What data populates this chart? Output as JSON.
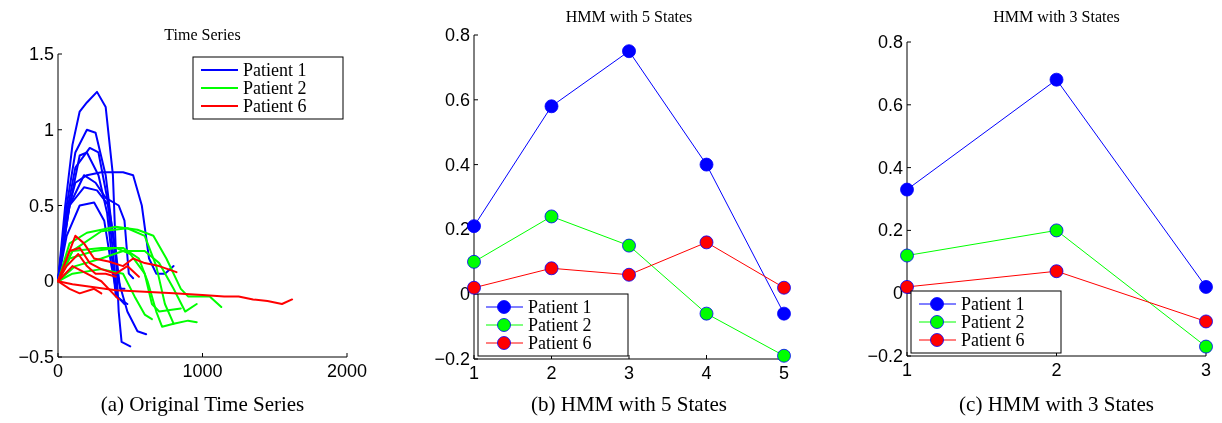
{
  "chart_data": [
    {
      "type": "line",
      "title": "Time Series",
      "annotations": [
        "(a)  Original Time Series"
      ],
      "xlim": [
        0,
        2000
      ],
      "xticks": [
        0,
        1000,
        2000
      ],
      "ylim": [
        -0.5,
        1.5
      ],
      "yticks": [
        -0.5,
        0,
        0.5,
        1,
        1.5
      ],
      "legend": "top right",
      "series": [
        {
          "name": "Patient 1",
          "color": "#0000ff",
          "x": [
            0,
            50,
            100,
            150,
            200,
            270,
            330,
            380,
            400,
            420,
            440,
            500
          ],
          "values": [
            0,
            0.5,
            0.9,
            1.12,
            1.18,
            1.25,
            1.15,
            0.7,
            0.2,
            -0.2,
            -0.4,
            -0.43
          ]
        },
        {
          "color": "#0000ff",
          "x": [
            0,
            60,
            120,
            200,
            260,
            330,
            380,
            420,
            480,
            550,
            610
          ],
          "values": [
            0,
            0.5,
            0.85,
            1.0,
            0.98,
            0.7,
            0.3,
            0,
            -0.2,
            -0.33,
            -0.35
          ]
        },
        {
          "color": "#0000ff",
          "x": [
            0,
            60,
            120,
            220,
            280,
            340,
            380,
            410,
            460
          ],
          "values": [
            0,
            0.45,
            0.75,
            0.88,
            0.85,
            0.55,
            0.2,
            -0.1,
            -0.15
          ]
        },
        {
          "color": "#0000ff",
          "x": [
            0,
            50,
            120,
            200,
            300,
            450,
            520,
            580,
            630,
            680,
            740,
            800
          ],
          "values": [
            0,
            0.4,
            0.65,
            0.7,
            0.72,
            0.72,
            0.7,
            0.5,
            0.15,
            0.05,
            0.05,
            0.1
          ]
        },
        {
          "color": "#0000ff",
          "x": [
            0,
            60,
            150,
            200,
            280,
            340,
            380,
            400,
            480
          ],
          "values": [
            0,
            0.4,
            0.83,
            0.85,
            0.7,
            0.45,
            0.1,
            -0.1,
            -0.15
          ]
        },
        {
          "color": "#0000ff",
          "x": [
            0,
            80,
            180,
            260,
            330,
            420,
            460,
            490,
            520
          ],
          "values": [
            0,
            0.5,
            0.7,
            0.65,
            0.55,
            0.5,
            0.4,
            0.05,
            0.02
          ]
        },
        {
          "color": "#0000ff",
          "x": [
            0,
            60,
            150,
            250,
            320,
            370,
            400
          ],
          "values": [
            0,
            0.3,
            0.5,
            0.52,
            0.4,
            0.1,
            -0.05
          ]
        },
        {
          "color": "#0000ff",
          "x": [
            0,
            80,
            180,
            270,
            350,
            400,
            430,
            460
          ],
          "values": [
            0,
            0.5,
            0.62,
            0.6,
            0.5,
            0.2,
            -0.05,
            -0.05
          ]
        },
        {
          "name": "Patient 2",
          "color": "#00ff00",
          "x": [
            0,
            80,
            200,
            400,
            550,
            660,
            750,
            850,
            900,
            1050,
            1130
          ],
          "values": [
            0,
            0.25,
            0.32,
            0.36,
            0.34,
            0.3,
            0.15,
            -0.05,
            -0.1,
            -0.1,
            -0.17
          ]
        },
        {
          "color": "#00ff00",
          "x": [
            0,
            100,
            300,
            480,
            600,
            680,
            740,
            800,
            900,
            960
          ],
          "values": [
            0,
            0.2,
            0.33,
            0.35,
            0.3,
            0.1,
            -0.15,
            -0.28,
            -0.26,
            -0.27
          ]
        },
        {
          "color": "#00ff00",
          "x": [
            0,
            100,
            300,
            450,
            560,
            620,
            680,
            720,
            800
          ],
          "values": [
            0,
            0.2,
            0.22,
            0.22,
            0.15,
            0,
            -0.2,
            -0.3,
            -0.28
          ]
        },
        {
          "color": "#00ff00",
          "x": [
            0,
            80,
            250,
            400,
            500,
            600,
            650,
            700,
            850
          ],
          "values": [
            0,
            0.15,
            0.2,
            0.22,
            0.18,
            0.05,
            -0.15,
            -0.2,
            -0.18
          ]
        },
        {
          "color": "#00ff00",
          "x": [
            0,
            120,
            300,
            450,
            600,
            700,
            800,
            880,
            960
          ],
          "values": [
            0,
            0.1,
            0.15,
            0.2,
            0.2,
            0.12,
            -0.05,
            -0.2,
            -0.15
          ]
        },
        {
          "color": "#00ff00",
          "x": [
            0,
            100,
            300,
            450,
            530,
            600,
            650
          ],
          "values": [
            0,
            0.05,
            0.08,
            0.05,
            -0.1,
            -0.22,
            -0.25
          ]
        },
        {
          "name": "Patient 6",
          "color": "#ff0000",
          "x": [
            0,
            100,
            250,
            400,
            600,
            800,
            1000,
            1150,
            1250,
            1350,
            1450,
            1550,
            1620
          ],
          "values": [
            0,
            -0.02,
            -0.04,
            -0.06,
            -0.07,
            -0.08,
            -0.09,
            -0.1,
            -0.1,
            -0.12,
            -0.13,
            -0.15,
            -0.12
          ]
        },
        {
          "color": "#ff0000",
          "x": [
            0,
            60,
            120,
            180,
            250,
            350,
            450,
            520,
            600,
            700,
            820
          ],
          "values": [
            0,
            0.15,
            0.3,
            0.25,
            0.15,
            0.13,
            0.1,
            0.15,
            0.12,
            0.1,
            0.06
          ]
        },
        {
          "color": "#ff0000",
          "x": [
            0,
            80,
            150,
            220,
            300,
            400,
            480,
            560
          ],
          "values": [
            0,
            0.2,
            0.22,
            0.12,
            0.08,
            0.05,
            0.1,
            0.03
          ]
        },
        {
          "color": "#ff0000",
          "x": [
            0,
            100,
            200,
            300,
            400,
            420
          ],
          "values": [
            0,
            0.1,
            0.05,
            0,
            -0.1,
            -0.12
          ]
        },
        {
          "color": "#ff0000",
          "x": [
            0,
            80,
            150,
            250,
            300
          ],
          "values": [
            0,
            -0.05,
            -0.08,
            -0.05,
            -0.08
          ]
        },
        {
          "color": "#ff0000",
          "x": [
            0,
            60,
            140,
            200,
            260,
            330,
            400
          ],
          "values": [
            0,
            0.1,
            0.18,
            0.1,
            0.05,
            0.05,
            0.03
          ]
        }
      ]
    },
    {
      "type": "line",
      "title": "HMM with 5 States",
      "annotations": [
        "(b)  HMM with 5 States"
      ],
      "x": [
        1,
        2,
        3,
        4,
        5
      ],
      "xlim": [
        1,
        5
      ],
      "xticks": [
        1,
        2,
        3,
        4,
        5
      ],
      "ylim": [
        -0.2,
        0.8
      ],
      "yticks": [
        -0.2,
        0,
        0.2,
        0.4,
        0.6,
        0.8
      ],
      "legend": "bottom left",
      "marker": "circle",
      "series": [
        {
          "name": "Patient 1",
          "color": "#0000ff",
          "values": [
            0.21,
            0.58,
            0.75,
            0.4,
            -0.06
          ]
        },
        {
          "name": "Patient 2",
          "color": "#00ff00",
          "values": [
            0.1,
            0.24,
            0.15,
            -0.06,
            -0.19
          ]
        },
        {
          "name": "Patient 6",
          "color": "#ff0000",
          "values": [
            0.02,
            0.08,
            0.06,
            0.16,
            0.02
          ]
        }
      ]
    },
    {
      "type": "line",
      "title": "HMM with 3 States",
      "annotations": [
        "(c)  HMM with 3 States"
      ],
      "x": [
        1,
        2,
        3
      ],
      "xlim": [
        1,
        3
      ],
      "xticks": [
        1,
        2,
        3
      ],
      "ylim": [
        -0.2,
        0.8
      ],
      "yticks": [
        -0.2,
        0,
        0.2,
        0.4,
        0.6,
        0.8
      ],
      "legend": "bottom left",
      "marker": "circle",
      "series": [
        {
          "name": "Patient 1",
          "color": "#0000ff",
          "values": [
            0.33,
            0.68,
            0.02
          ]
        },
        {
          "name": "Patient 2",
          "color": "#00ff00",
          "values": [
            0.12,
            0.2,
            -0.17
          ]
        },
        {
          "name": "Patient 6",
          "color": "#ff0000",
          "values": [
            0.02,
            0.07,
            -0.09
          ]
        }
      ]
    }
  ]
}
